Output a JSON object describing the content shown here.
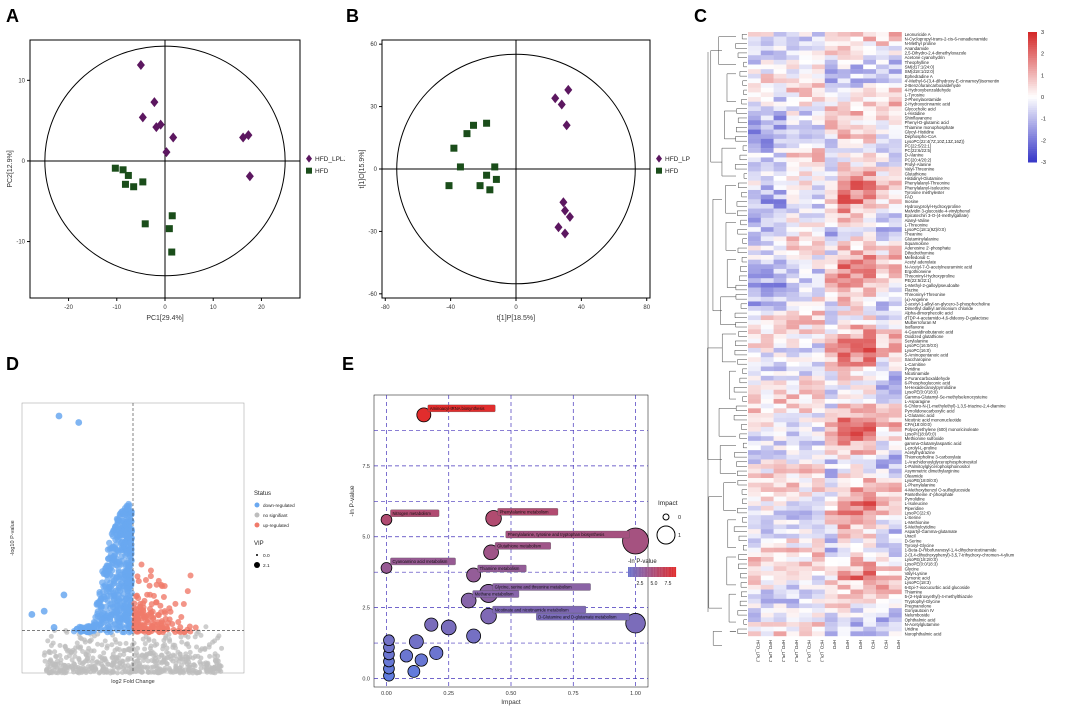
{
  "panels": {
    "a": "A",
    "b": "B",
    "c": "C",
    "d": "D",
    "e": "E"
  },
  "chart_data": [
    {
      "id": "A",
      "type": "scatter",
      "title": "",
      "xlabel": "PC1[29.4%]",
      "ylabel": "PC2[12.9%]",
      "xlim": [
        -28,
        28
      ],
      "ylim": [
        -17,
        15
      ],
      "xticks": [
        -20,
        -10,
        0,
        10,
        20
      ],
      "yticks": [
        -10,
        0,
        10
      ],
      "series": [
        {
          "name": "HFD_LPLJ",
          "marker": "diamond",
          "color": "#5c1760",
          "points": [
            [
              -5,
              11.9
            ],
            [
              -2.2,
              7.3
            ],
            [
              -4.6,
              5.4
            ],
            [
              -1.8,
              4.2
            ],
            [
              1.7,
              2.9
            ],
            [
              0.3,
              1.1
            ],
            [
              -0.9,
              4.5
            ],
            [
              16.2,
              2.9
            ],
            [
              17.3,
              3.2
            ],
            [
              17.6,
              -1.9
            ]
          ]
        },
        {
          "name": "HFD",
          "marker": "square",
          "color": "#1a4d1a",
          "points": [
            [
              -8.7,
              -1.1
            ],
            [
              -7.6,
              -1.8
            ],
            [
              -6.5,
              -3.2
            ],
            [
              -4.6,
              -2.6
            ],
            [
              -10.3,
              -0.9
            ],
            [
              -8.2,
              -2.9
            ],
            [
              -4.1,
              -7.8
            ],
            [
              0.9,
              -8.4
            ],
            [
              1.5,
              -6.8
            ],
            [
              1.4,
              -11.3
            ]
          ]
        }
      ]
    },
    {
      "id": "B",
      "type": "scatter",
      "title": "",
      "xlabel": "t[1]P[18.5%]",
      "ylabel": "t[1]O[15.9%]",
      "xlim": [
        -82,
        82
      ],
      "ylim": [
        -62,
        62
      ],
      "xticks": [
        -80,
        -40,
        0,
        40,
        80
      ],
      "yticks": [
        -60,
        -30,
        0,
        30,
        60
      ],
      "series": [
        {
          "name": "HFD_LPLJ",
          "marker": "diamond",
          "color": "#5c1760",
          "points": [
            [
              24,
              34
            ],
            [
              32,
              38
            ],
            [
              28,
              31
            ],
            [
              31,
              21
            ],
            [
              29,
              -16
            ],
            [
              30,
              -20
            ],
            [
              33,
              -23
            ],
            [
              30,
              -31
            ],
            [
              26,
              -28
            ]
          ]
        },
        {
          "name": "HFD",
          "marker": "square",
          "color": "#1a4d1a",
          "points": [
            [
              -26,
              21
            ],
            [
              -18,
              22
            ],
            [
              -30,
              17
            ],
            [
              -38,
              10
            ],
            [
              -34,
              1
            ],
            [
              -18,
              -3
            ],
            [
              -12,
              -5
            ],
            [
              -13,
              1
            ],
            [
              -22,
              -8
            ],
            [
              -41,
              -8
            ],
            [
              -16,
              -10
            ]
          ]
        }
      ]
    },
    {
      "id": "C",
      "type": "heatmap",
      "title": "",
      "color_scale": {
        "min": -3,
        "max": 3,
        "ticks": [
          3,
          2,
          1,
          0,
          -1,
          -2,
          -3
        ],
        "low": "#3a3ac8",
        "mid": "#ffffff",
        "high": "#d42a2a"
      },
      "columns": [
        "HFD_LPLJ",
        "HFD_LPLJ",
        "HFD_LPLJ",
        "HFD_LPLJ",
        "HFD_LPLJ",
        "HFD_LPLJ",
        "HFD",
        "HFD",
        "HFD",
        "HFD",
        "HFD",
        "HFD"
      ],
      "rows": [
        "Leonuricide A",
        "N-Cyclopropyl-trans-2-cis-6-nonadienamide",
        "N-Methyl proline",
        "Anandamide",
        "2,5-Dihydro-2,4-dimethyloxazole",
        "Acetone cyanohydrin",
        "Theophylline",
        "SM(d17:1/24:0)",
        "SM(d18:1/22:0)",
        "Ephedradine A",
        "4'-Methyl-6-(3,4-dihydroxy-E-cinnamoyl)isomentin",
        "2-Benzofurancarboxaldehyde",
        "4-Hydroxybenzaldehyde",
        "L-Tyrosine",
        "2-Phenylacetamide",
        "2-Hydroxycinnamic acid",
        "Glycocholic acid",
        "L-Histidine",
        "Shinflavanone",
        "Phenyl-D-glutamic acid",
        "Thiamine monophosphate",
        "Glycyl-Histidine",
        "Dephospho-CoA",
        "LysoPC(22:4(7Z,10Z,13Z,16Z))",
        "PC(22:5/22:1)",
        "PC(22:6/22:5)",
        "D-Alanine",
        "PC(20:4/20:2)",
        "Prolyl-Alanine",
        "Valyl-Threonine",
        "Glutathione",
        "Histidinyl-Glutamine",
        "Phenylalanyl-Threonine",
        "Phenylalanyl-Isoleucine",
        "Tyrosine methylester",
        "FAD",
        "Inosine",
        "Hydroxyprolyl-Hydroxyproline",
        "Malvidin 3-glucoside-4-vinylphenol",
        "Epicatechin 3-O-(4-methylgallate)",
        "Alanyl-Valine",
        "L-Threonine",
        "LysoPC(18:1(9Z)/0:0)",
        "Theanine",
        "Glutaminylalanine",
        "Squamolone",
        "Adenosine 2'-phosphate",
        "Dihydrothymine",
        "Melledonal C",
        "Acetyl adenylate",
        "N-Acetyl-7-O-acetylneuraminic acid",
        "Ergothioneine",
        "Threoninyl-Hydroxyproline",
        "PE(22:5/22:1)",
        "1-Methyl-2-galloylpseudoalte",
        "Flazine",
        "Threoninyl-Threonine",
        "(±)-Angeline",
        "2-acetyl-1-alkyl-sn-glycero-3-phosphocholine",
        "Dimethyl dialkyl ammonium chloride",
        "Alpha-dimorphecolic acid",
        "dTDP-4-acetamido-4,6-dideoxy-D-galactose",
        "Mulberrofuran M",
        "Isoflavone",
        "4-Guanidinobutanoic acid",
        "Oxidized glutathione",
        "Serylalanine",
        "LysoPC(16:0/0:0)",
        "LysoPC(16:0)",
        "5-Aminopentanoic acid",
        "Saccharopine",
        "L-Carnitine",
        "Pyridine",
        "Nicotinamide",
        "2-Furancarboxaldehyde",
        "6-Phosphogluconic acid",
        "N-Hexadecanoylpyrrolidine",
        "LysoPE(0:0/18:0)",
        "Gamma-Glutamyl-Se-methylselenocysteine",
        "L-Asparagine",
        "6-Chloro-N-(1-methylethyl)-1,3,5-triazine-2,4-diamine",
        "Pyrrolidonecarboxylic acid",
        "L-Glutamic acid",
        "Nicotinic acid mononucleotide",
        "CPA(18:0/0:0)",
        "Polyoxyethylene (600) monoricinoleate",
        "LysoPI(18:0/0:0)",
        "Methionine sulfoxide",
        "gamma-Glutamylaspartic acid",
        "L-prolyl-L-proline",
        "Acetylhydrazine",
        "Thiomorpholine 3-carboxylate",
        "1-Arachidonoylglycerophosphoinositol",
        "1-Palmitoylglycerophosphoinositol",
        "Asymmetric dimethylarginine",
        "Oleamide",
        "LysoPE(18:0/0:0)",
        "L-Phenylalanine",
        "4-Methoxybenzyl O-sulfoglucoside",
        "Pantetheine 4'-phosphate",
        "Pyrrolidine",
        "L-Isoleucine",
        "Piperidine",
        "LysoPC(22:6)",
        "L-Serine",
        "L-Methionine",
        "5-Methylcytidine",
        "Aspartyl-Gamma-glutamate",
        "Uracil",
        "D-Serine",
        "Tyrosyl-Glycine",
        "1-Beta-D-Ribofuranosyl-1,4-dihydronicotinamide",
        "2-(3,4-dihydroxyphenyl)-3,5,7-trihydroxy-chromen-4-ylium",
        "LysoPE(18:2/0:0)",
        "LysoPE(0:0/18:3)",
        "Glycine",
        "Valyl-Lysine",
        "Zymonic acid",
        "LysoPC(18:3)",
        "6-Epi-7-isocucurbic acid glucoside",
        "Thiamine",
        "5-(2-Hydroxyethyl)-4-methylthiazole",
        "Tryptophyl-Glycine",
        "Pregnanolone",
        "Gonyautoxin IV",
        "Nelumboside",
        "Ophthalmic acid",
        "N-Acetylglutamine",
        "Uridine",
        "Norophthalmic acid"
      ]
    },
    {
      "id": "D",
      "type": "scatter",
      "title": "",
      "xlabel": "log2 Fold Change",
      "ylabel": "-log10 P-value",
      "xlim": [
        -4.5,
        4.5
      ],
      "ylim": [
        0,
        8.3
      ],
      "legend": {
        "status_title": "Status",
        "status": [
          "down-regulated",
          "no signifiant",
          "up-regulated"
        ],
        "status_colors": [
          "#6aa8f0",
          "#bdbdbd",
          "#f07a6a"
        ],
        "vip_title": "VIP",
        "vip_values": [
          "0.0",
          "2.1"
        ]
      },
      "note": "Volcano plot; points summarized as clusters of down-regulated (blue), non-significant (grey) and up-regulated (red) metabolites."
    },
    {
      "id": "E",
      "type": "scatter",
      "title": "",
      "xlabel": "Impact",
      "ylabel": "-ln P-value",
      "xlim": [
        -0.05,
        1.05
      ],
      "ylim": [
        -0.3,
        10
      ],
      "xticks": [
        0,
        0.25,
        0.5,
        0.75,
        1
      ],
      "yticks": [
        0,
        2.5,
        5,
        7.5
      ],
      "xtick_labels": [
        "0.00",
        "0.25",
        "0.50",
        "0.75",
        "1.00"
      ],
      "ytick_labels": [
        "0.0",
        "2.5",
        "5.0",
        "7.5"
      ],
      "legend": {
        "impact_title": "Impact",
        "impact_values": [
          "0",
          "1"
        ],
        "color_title": "-ln P-value",
        "color_ticks": [
          "2.5",
          "5.0",
          "7.5"
        ]
      },
      "points": [
        {
          "label": "Aminoacyl-tRNA biosynthesis",
          "impact": 0.15,
          "logp": 9.3,
          "size": 0.25
        },
        {
          "label": "Phenylalanine metabolism",
          "impact": 0.43,
          "logp": 5.65,
          "size": 0.35
        },
        {
          "label": "Nitrogen metabolism",
          "impact": 0.0,
          "logp": 5.6,
          "size": 0.05
        },
        {
          "label": "Phenylalanine, tyrosine and tryptophan biosynthesis",
          "impact": 1.0,
          "logp": 4.85,
          "size": 1.0
        },
        {
          "label": "Glutathione metabolism",
          "impact": 0.42,
          "logp": 4.45,
          "size": 0.3
        },
        {
          "label": "Thiamine metabolism",
          "impact": 0.35,
          "logp": 3.65,
          "size": 0.25
        },
        {
          "label": "Cyanoamino acid metabolism",
          "impact": 0.0,
          "logp": 3.9,
          "size": 0.05
        },
        {
          "label": "Glycine, serine and threonine metabolism",
          "impact": 0.41,
          "logp": 3.0,
          "size": 0.5
        },
        {
          "label": "Methane metabolism",
          "impact": 0.33,
          "logp": 2.75,
          "size": 0.3
        },
        {
          "label": "Nicotinate and nicotinamide metabolism",
          "impact": 0.41,
          "logp": 2.2,
          "size": 0.35
        },
        {
          "label": "D-Glutamine and D-glutamate metabolism",
          "impact": 1.0,
          "logp": 1.95,
          "size": 0.6
        },
        {
          "label": "",
          "impact": 0.35,
          "logp": 1.5,
          "size": 0.25
        },
        {
          "label": "",
          "impact": 0.25,
          "logp": 1.8,
          "size": 0.3
        },
        {
          "label": "",
          "impact": 0.12,
          "logp": 1.3,
          "size": 0.25
        },
        {
          "label": "",
          "impact": 0.08,
          "logp": 0.8,
          "size": 0.15
        },
        {
          "label": "",
          "impact": 0.14,
          "logp": 0.65,
          "size": 0.15
        },
        {
          "label": "",
          "impact": 0.2,
          "logp": 0.9,
          "size": 0.2
        },
        {
          "label": "",
          "impact": 0.18,
          "logp": 1.9,
          "size": 0.2
        },
        {
          "label": "",
          "impact": 0.11,
          "logp": 0.25,
          "size": 0.12
        },
        {
          "label": "",
          "impact": 0.01,
          "logp": 0.1,
          "size": 0.05
        },
        {
          "label": "",
          "impact": 0.01,
          "logp": 0.35,
          "size": 0.05
        },
        {
          "label": "",
          "impact": 0.01,
          "logp": 0.6,
          "size": 0.05
        },
        {
          "label": "",
          "impact": 0.01,
          "logp": 0.85,
          "size": 0.05
        },
        {
          "label": "",
          "impact": 0.01,
          "logp": 1.1,
          "size": 0.05
        },
        {
          "label": "",
          "impact": 0.01,
          "logp": 1.35,
          "size": 0.05
        }
      ]
    }
  ]
}
